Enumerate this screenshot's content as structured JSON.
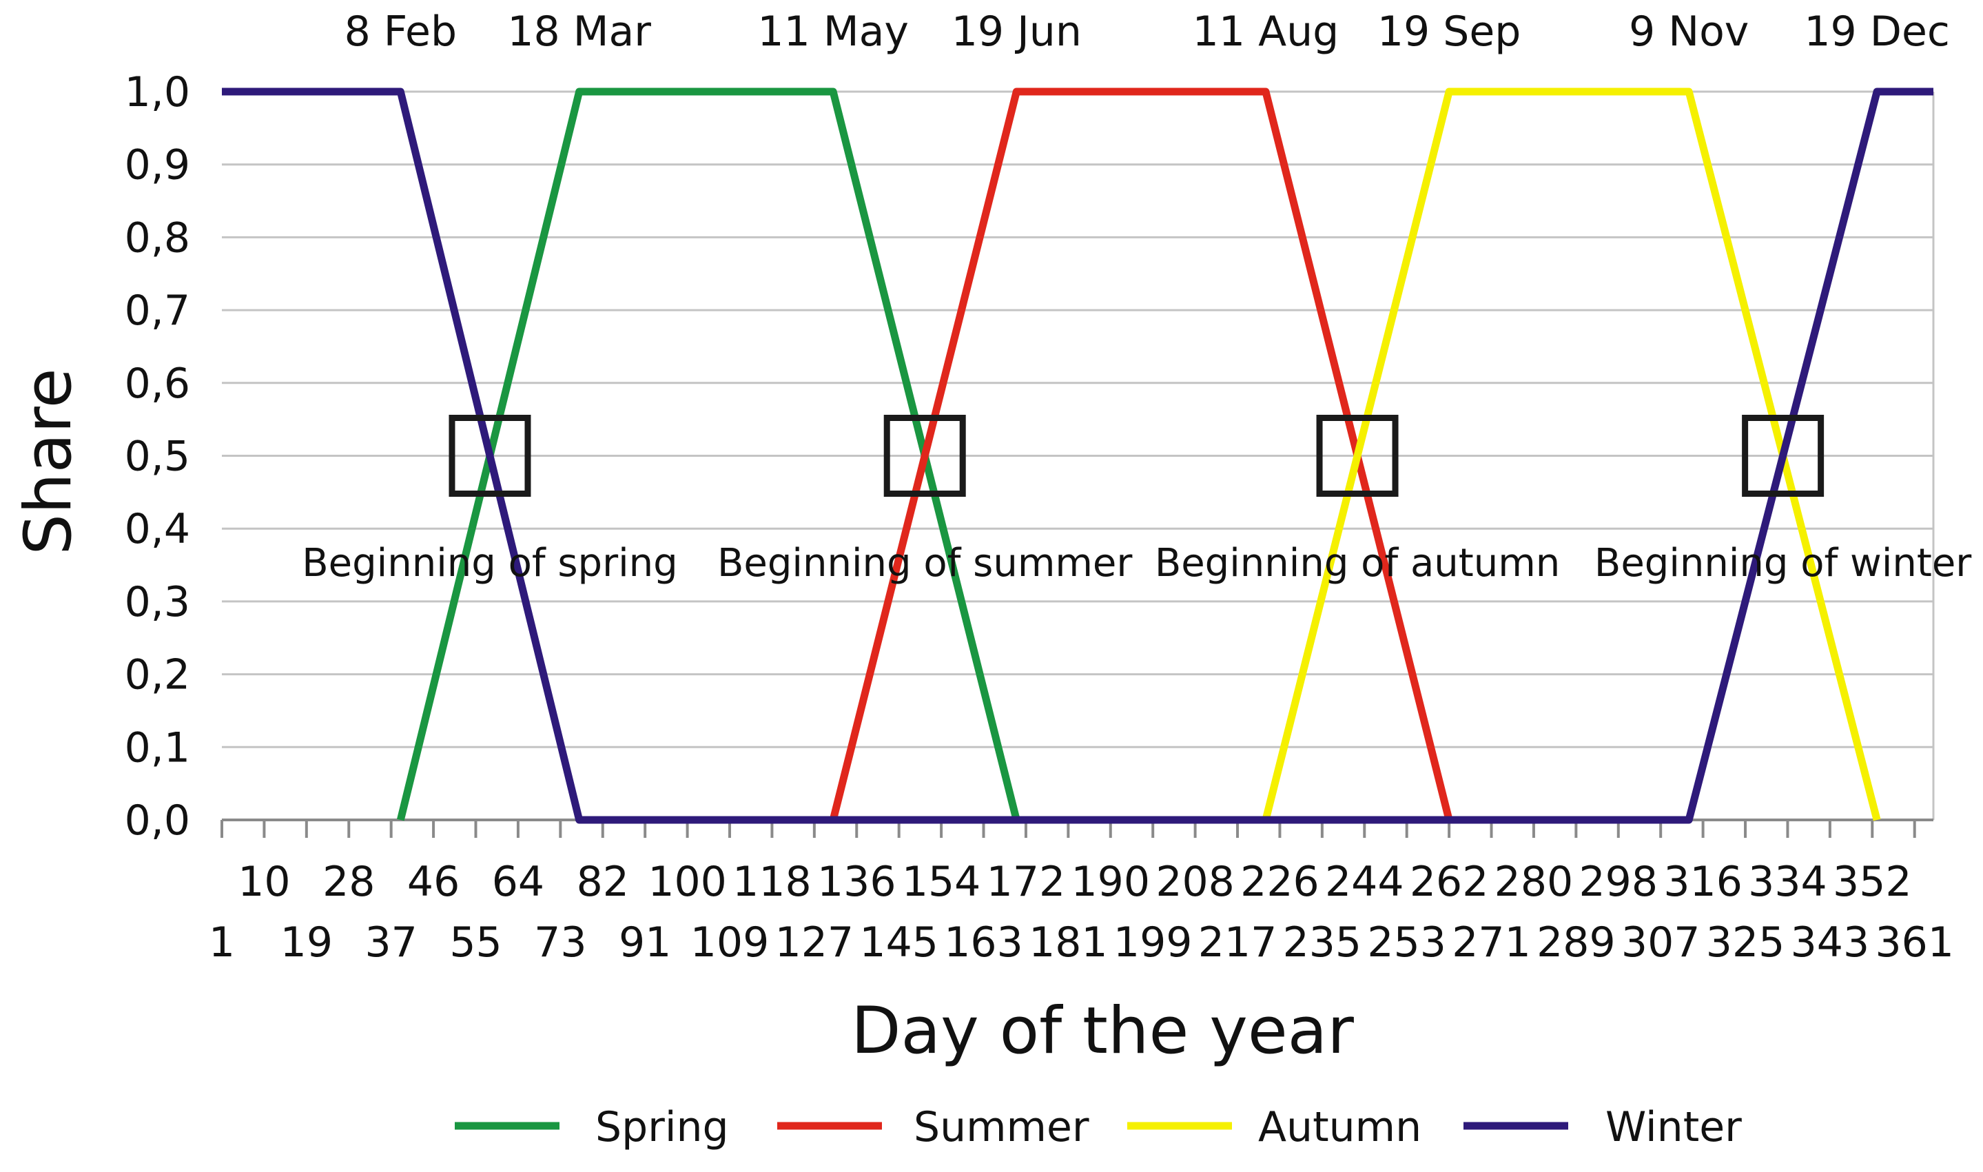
{
  "chart_data": {
    "type": "line",
    "title": "",
    "xlabel": "Day of the year",
    "ylabel": "Share",
    "xlim": [
      1,
      365
    ],
    "ylim": [
      0.0,
      1.0
    ],
    "grid": "horizontal",
    "legend_position": "bottom",
    "y_ticks": [
      "0,0",
      "0,1",
      "0,2",
      "0,3",
      "0,4",
      "0,5",
      "0,6",
      "0,7",
      "0,8",
      "0,9",
      "1,0"
    ],
    "x_tick_labels_row1": [
      {
        "day": 10,
        "label": "10"
      },
      {
        "day": 28,
        "label": "28"
      },
      {
        "day": 46,
        "label": "46"
      },
      {
        "day": 64,
        "label": "64"
      },
      {
        "day": 82,
        "label": "82"
      },
      {
        "day": 100,
        "label": "100"
      },
      {
        "day": 118,
        "label": "118"
      },
      {
        "day": 136,
        "label": "136"
      },
      {
        "day": 154,
        "label": "154"
      },
      {
        "day": 172,
        "label": "172"
      },
      {
        "day": 190,
        "label": "190"
      },
      {
        "day": 208,
        "label": "208"
      },
      {
        "day": 226,
        "label": "226"
      },
      {
        "day": 244,
        "label": "244"
      },
      {
        "day": 262,
        "label": "262"
      },
      {
        "day": 280,
        "label": "280"
      },
      {
        "day": 298,
        "label": "298"
      },
      {
        "day": 316,
        "label": "316"
      },
      {
        "day": 334,
        "label": "334"
      },
      {
        "day": 352,
        "label": "352"
      }
    ],
    "x_tick_labels_row2": [
      {
        "day": 1,
        "label": "1"
      },
      {
        "day": 19,
        "label": "19"
      },
      {
        "day": 37,
        "label": "37"
      },
      {
        "day": 55,
        "label": "55"
      },
      {
        "day": 73,
        "label": "73"
      },
      {
        "day": 91,
        "label": "91"
      },
      {
        "day": 109,
        "label": "109"
      },
      {
        "day": 127,
        "label": "127"
      },
      {
        "day": 145,
        "label": "145"
      },
      {
        "day": 163,
        "label": "163"
      },
      {
        "day": 181,
        "label": "181"
      },
      {
        "day": 199,
        "label": "199"
      },
      {
        "day": 217,
        "label": "217"
      },
      {
        "day": 235,
        "label": "235"
      },
      {
        "day": 253,
        "label": "253"
      },
      {
        "day": 271,
        "label": "271"
      },
      {
        "day": 289,
        "label": "289"
      },
      {
        "day": 307,
        "label": "307"
      },
      {
        "day": 325,
        "label": "325"
      },
      {
        "day": 343,
        "label": "343"
      },
      {
        "day": 361,
        "label": "361"
      }
    ],
    "date_labels": [
      {
        "day": 39,
        "label": "8 Feb"
      },
      {
        "day": 77,
        "label": "18 Mar"
      },
      {
        "day": 131,
        "label": "11 May"
      },
      {
        "day": 170,
        "label": "19 Jun"
      },
      {
        "day": 223,
        "label": "11 Aug"
      },
      {
        "day": 262,
        "label": "19 Sep"
      },
      {
        "day": 313,
        "label": "9 Nov"
      },
      {
        "day": 353,
        "label": "19 Dec"
      }
    ],
    "annotations": [
      {
        "day": 58,
        "y": 0.5,
        "label": "Beginning of spring"
      },
      {
        "day": 150.5,
        "y": 0.5,
        "label": "Beginning of summer"
      },
      {
        "day": 242.5,
        "y": 0.5,
        "label": "Beginning of autumn"
      },
      {
        "day": 333,
        "y": 0.5,
        "label": "Beginning of winter"
      }
    ],
    "series": [
      {
        "name": "Spring",
        "color": "#1a9641",
        "x": [
          39,
          77,
          131,
          170
        ],
        "y": [
          0,
          1,
          1,
          0
        ]
      },
      {
        "name": "Summer",
        "color": "#e0271c",
        "x": [
          131,
          170,
          223,
          262
        ],
        "y": [
          0,
          1,
          1,
          0
        ]
      },
      {
        "name": "Autumn",
        "color": "#f5f000",
        "x": [
          223,
          262,
          313,
          353
        ],
        "y": [
          0,
          1,
          1,
          0
        ]
      },
      {
        "name": "Winter",
        "color": "#2e1a7a",
        "x": [
          1,
          39,
          77,
          313,
          353,
          365
        ],
        "y": [
          1,
          1,
          0,
          0,
          1,
          1
        ]
      }
    ]
  }
}
